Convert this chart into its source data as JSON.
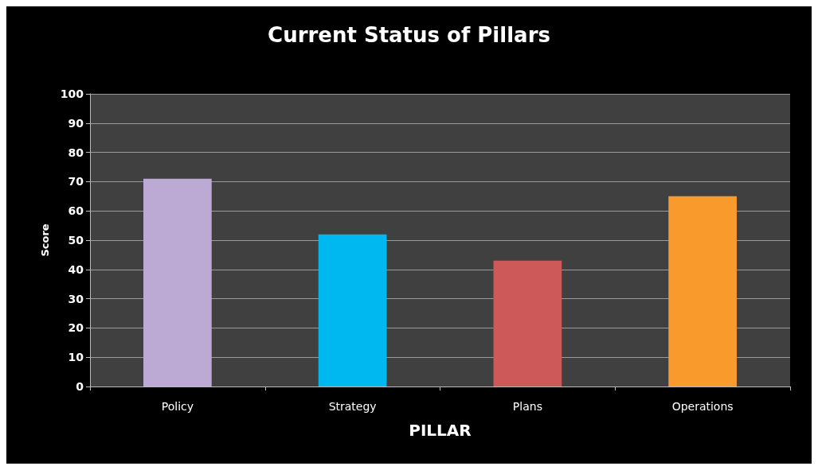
{
  "chart_data": {
    "type": "bar",
    "title": "Current Status of Pillars",
    "xlabel": "PILLAR",
    "ylabel": "Score",
    "categories": [
      "Policy",
      "Strategy",
      "Plans",
      "Operations"
    ],
    "values": [
      71,
      52,
      43,
      65
    ],
    "colors": [
      "#bcaad4",
      "#00b8f0",
      "#cd5a59",
      "#f99a2c"
    ],
    "ylim": [
      0,
      100
    ],
    "yticks": [
      0,
      10,
      20,
      30,
      40,
      50,
      60,
      70,
      80,
      90,
      100
    ],
    "grid": "y"
  }
}
